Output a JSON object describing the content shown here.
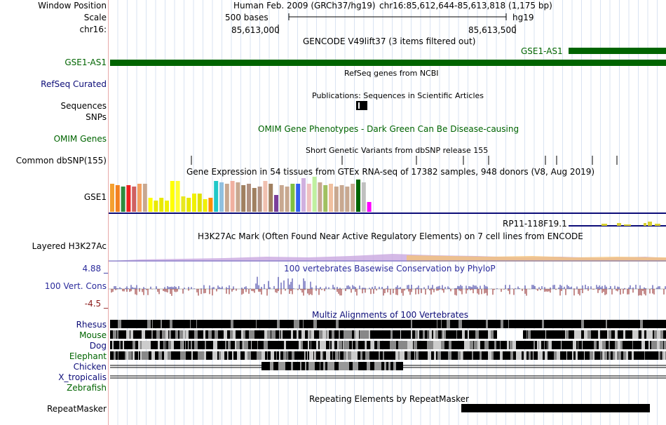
{
  "header": {
    "window_position_label": "Window Position",
    "scale_label": "Scale",
    "chrom_label": "chr16:",
    "assembly": "Human Feb. 2009 (GRCh37/hg19)",
    "position": "chr16:85,612,644-85,613,818 (1,175 bp)",
    "scale_text": "500 bases",
    "scale_db": "hg19",
    "tick1": "85,613,000",
    "tick2": "85,613,500"
  },
  "tracks": {
    "gencode": {
      "title": "GENCODE V49lift37 (3 items filtered out)",
      "label": "GSE1-AS1",
      "item_label": "GSE1-AS1",
      "color": "#006400"
    },
    "refseq": {
      "title": "RefSeq genes from NCBI",
      "label": "RefSeq Curated",
      "color": "#0c0c78"
    },
    "publications": {
      "title": "Publications: Sequences in Scientific Articles",
      "label": "Sequences"
    },
    "snps": {
      "label": "SNPs"
    },
    "omim": {
      "title": "OMIM Gene Phenotypes - Dark Green Can Be Disease-causing",
      "label": "OMIM Genes",
      "color": "#006400"
    },
    "dbsnp": {
      "title": "Short Genetic Variants from dbSNP release 155",
      "label": "Common dbSNP(155)"
    },
    "gtex": {
      "title": "Gene Expression in 54 tissues from GTEx RNA-seq of 17382 samples, 948 donors (V8, Aug 2019)",
      "label": "GSE1",
      "item_label": "RP11-118F19.1"
    },
    "h3k27ac": {
      "title": "H3K27Ac Mark (Often Found Near Active Regulatory Elements) on 7 cell lines from ENCODE",
      "label": "Layered H3K27Ac"
    },
    "phylop": {
      "title": "100 vertebrates Basewise Conservation by PhyloP",
      "label": "100 Vert. Cons",
      "max": "4.88 _",
      "min": "-4.5 _",
      "color": "#2b2b9c"
    },
    "multiz": {
      "title": "Multiz Alignments of 100 Vertebrates",
      "species": [
        "Rhesus",
        "Mouse",
        "Dog",
        "Elephant",
        "Chicken",
        "X_tropicalis",
        "Zebrafish"
      ]
    },
    "repeatmasker": {
      "title": "Repeating Elements by RepeatMasker",
      "label": "RepeatMasker"
    }
  }
}
